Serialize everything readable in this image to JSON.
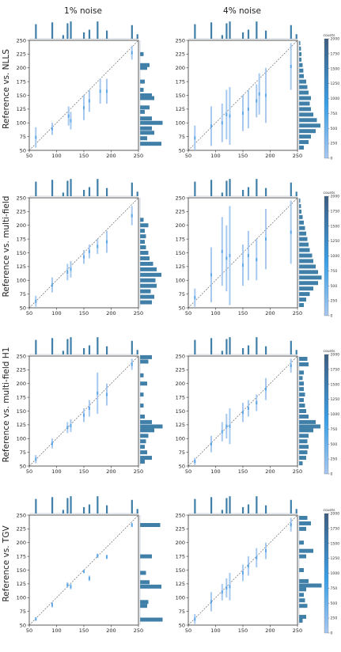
{
  "figure": {
    "column_titles": [
      "1% noise",
      "4% noise"
    ],
    "row_labels": [
      "Reference vs. NLLS",
      "Reference vs. multi-field",
      "Reference vs. multi-field H1",
      "Reference vs. TGV"
    ],
    "colorbar": {
      "title": "counts",
      "ticks": [
        0,
        250,
        500,
        750,
        1000,
        1250,
        1500,
        1750,
        2000
      ],
      "colors": [
        "#a8c8f0",
        "#3aa0e8",
        "#3e5e82"
      ]
    }
  },
  "chart_data": [
    {
      "type": "heatmap",
      "row": "Reference vs. NLLS",
      "column": "1% noise",
      "xlim": [
        50,
        250
      ],
      "ylim": [
        50,
        250
      ],
      "x_ticks": [
        50,
        100,
        150,
        200,
        250
      ],
      "y_ticks": [
        50,
        75,
        100,
        125,
        150,
        175,
        200,
        225,
        250
      ],
      "segments": [
        [
          62,
          55,
          92
        ],
        [
          92,
          78,
          100
        ],
        [
          122,
          95,
          130
        ],
        [
          126,
          88,
          120
        ],
        [
          150,
          105,
          150
        ],
        [
          160,
          120,
          160
        ],
        [
          180,
          135,
          180
        ],
        [
          192,
          135,
          180
        ],
        [
          238,
          215,
          240
        ]
      ],
      "y_marginal": [
        [
          62,
          0.9
        ],
        [
          72,
          0.3
        ],
        [
          82,
          0.6
        ],
        [
          90,
          0.5
        ],
        [
          100,
          0.95
        ],
        [
          108,
          0.5
        ],
        [
          120,
          0.2
        ],
        [
          128,
          0.4
        ],
        [
          145,
          0.6
        ],
        [
          150,
          0.5
        ],
        [
          160,
          0.15
        ],
        [
          175,
          0.2
        ],
        [
          200,
          0.3
        ],
        [
          205,
          0.4
        ],
        [
          225,
          0.15
        ]
      ]
    },
    {
      "type": "heatmap",
      "row": "Reference vs. NLLS",
      "column": "4% noise",
      "xlim": [
        50,
        250
      ],
      "ylim": [
        50,
        250
      ],
      "x_ticks": [
        50,
        100,
        150,
        200,
        250
      ],
      "y_ticks": [
        50,
        75,
        100,
        125,
        150,
        175,
        200,
        225,
        250
      ],
      "segments": [
        [
          62,
          50,
          95
        ],
        [
          92,
          58,
          130
        ],
        [
          112,
          65,
          135
        ],
        [
          120,
          70,
          160
        ],
        [
          126,
          60,
          165
        ],
        [
          150,
          85,
          150
        ],
        [
          160,
          90,
          160
        ],
        [
          175,
          110,
          170
        ],
        [
          180,
          115,
          190
        ],
        [
          192,
          100,
          200
        ],
        [
          238,
          160,
          245
        ]
      ],
      "y_marginal": [
        [
          55,
          0.2
        ],
        [
          65,
          0.4
        ],
        [
          75,
          0.5
        ],
        [
          85,
          0.7
        ],
        [
          95,
          0.9
        ],
        [
          105,
          0.75
        ],
        [
          115,
          0.6
        ],
        [
          125,
          0.5
        ],
        [
          135,
          0.45
        ],
        [
          145,
          0.5
        ],
        [
          155,
          0.4
        ],
        [
          165,
          0.35
        ],
        [
          175,
          0.3
        ],
        [
          185,
          0.2
        ],
        [
          195,
          0.18
        ],
        [
          205,
          0.15
        ],
        [
          215,
          0.1
        ],
        [
          225,
          0.1
        ],
        [
          235,
          0.08
        ],
        [
          245,
          0.05
        ]
      ]
    },
    {
      "type": "heatmap",
      "row": "Reference vs. multi-field",
      "column": "1% noise",
      "xlim": [
        50,
        250
      ],
      "ylim": [
        50,
        250
      ],
      "x_ticks": [
        50,
        100,
        150,
        200,
        250
      ],
      "y_ticks": [
        50,
        75,
        100,
        125,
        150,
        175,
        200,
        225,
        250
      ],
      "segments": [
        [
          62,
          52,
          72
        ],
        [
          92,
          78,
          105
        ],
        [
          120,
          100,
          130
        ],
        [
          126,
          105,
          135
        ],
        [
          150,
          130,
          155
        ],
        [
          160,
          140,
          165
        ],
        [
          175,
          148,
          175
        ],
        [
          192,
          150,
          190
        ],
        [
          238,
          200,
          235
        ]
      ],
      "y_marginal": [
        [
          60,
          0.5
        ],
        [
          70,
          0.6
        ],
        [
          80,
          0.45
        ],
        [
          90,
          0.7
        ],
        [
          100,
          0.65
        ],
        [
          110,
          0.9
        ],
        [
          120,
          0.7
        ],
        [
          130,
          0.55
        ],
        [
          140,
          0.4
        ],
        [
          150,
          0.35
        ],
        [
          160,
          0.25
        ],
        [
          170,
          0.2
        ],
        [
          180,
          0.25
        ],
        [
          190,
          0.2
        ],
        [
          200,
          0.35
        ],
        [
          210,
          0.15
        ]
      ]
    },
    {
      "type": "heatmap",
      "row": "Reference vs. multi-field",
      "column": "4% noise",
      "xlim": [
        50,
        250
      ],
      "ylim": [
        50,
        250
      ],
      "x_ticks": [
        50,
        100,
        150,
        200,
        250
      ],
      "y_ticks": [
        50,
        75,
        100,
        125,
        150,
        175,
        200,
        225,
        250
      ],
      "segments": [
        [
          62,
          52,
          85
        ],
        [
          92,
          60,
          160
        ],
        [
          112,
          90,
          215
        ],
        [
          120,
          80,
          200
        ],
        [
          126,
          55,
          235
        ],
        [
          150,
          90,
          165
        ],
        [
          160,
          100,
          190
        ],
        [
          175,
          100,
          175
        ],
        [
          192,
          120,
          230
        ],
        [
          238,
          130,
          245
        ]
      ],
      "y_marginal": [
        [
          55,
          0.2
        ],
        [
          65,
          0.3
        ],
        [
          75,
          0.45
        ],
        [
          85,
          0.6
        ],
        [
          95,
          0.8
        ],
        [
          105,
          0.95
        ],
        [
          115,
          0.8
        ],
        [
          125,
          0.7
        ],
        [
          135,
          0.6
        ],
        [
          145,
          0.55
        ],
        [
          155,
          0.45
        ],
        [
          165,
          0.4
        ],
        [
          175,
          0.35
        ],
        [
          185,
          0.3
        ],
        [
          195,
          0.25
        ],
        [
          205,
          0.2
        ],
        [
          215,
          0.15
        ],
        [
          225,
          0.1
        ],
        [
          235,
          0.08
        ],
        [
          245,
          0.05
        ]
      ]
    },
    {
      "type": "heatmap",
      "row": "Reference vs. multi-field H1",
      "column": "1% noise",
      "xlim": [
        50,
        250
      ],
      "ylim": [
        50,
        250
      ],
      "x_ticks": [
        50,
        100,
        150,
        200,
        250
      ],
      "y_ticks": [
        50,
        75,
        100,
        125,
        150,
        175,
        200,
        225,
        250
      ],
      "segments": [
        [
          62,
          55,
          70
        ],
        [
          92,
          82,
          100
        ],
        [
          120,
          110,
          130
        ],
        [
          126,
          112,
          135
        ],
        [
          150,
          130,
          155
        ],
        [
          160,
          140,
          170
        ],
        [
          175,
          145,
          220
        ],
        [
          192,
          160,
          200
        ],
        [
          238,
          225,
          245
        ]
      ],
      "y_marginal": [
        [
          58,
          0.2
        ],
        [
          65,
          0.5
        ],
        [
          75,
          0.3
        ],
        [
          85,
          0.2
        ],
        [
          95,
          0.25
        ],
        [
          105,
          0.35
        ],
        [
          115,
          0.6
        ],
        [
          122,
          0.95
        ],
        [
          130,
          0.5
        ],
        [
          140,
          0.2
        ],
        [
          160,
          0.15
        ],
        [
          180,
          0.15
        ],
        [
          200,
          0.3
        ],
        [
          215,
          0.15
        ],
        [
          240,
          0.35
        ],
        [
          248,
          0.5
        ]
      ]
    },
    {
      "type": "heatmap",
      "row": "Reference vs. multi-field H1",
      "column": "4% noise",
      "xlim": [
        50,
        250
      ],
      "ylim": [
        50,
        250
      ],
      "x_ticks": [
        50,
        100,
        150,
        200,
        250
      ],
      "y_ticks": [
        50,
        75,
        100,
        125,
        150,
        175,
        200,
        225,
        250
      ],
      "segments": [
        [
          62,
          52,
          65
        ],
        [
          92,
          75,
          105
        ],
        [
          112,
          95,
          130
        ],
        [
          120,
          100,
          145
        ],
        [
          126,
          90,
          155
        ],
        [
          150,
          130,
          165
        ],
        [
          160,
          140,
          170
        ],
        [
          175,
          150,
          180
        ],
        [
          192,
          170,
          210
        ],
        [
          238,
          220,
          245
        ]
      ],
      "y_marginal": [
        [
          55,
          0.15
        ],
        [
          65,
          0.3
        ],
        [
          75,
          0.35
        ],
        [
          85,
          0.4
        ],
        [
          95,
          0.35
        ],
        [
          105,
          0.4
        ],
        [
          115,
          0.6
        ],
        [
          122,
          0.9
        ],
        [
          130,
          0.7
        ],
        [
          140,
          0.4
        ],
        [
          150,
          0.3
        ],
        [
          160,
          0.25
        ],
        [
          170,
          0.2
        ],
        [
          180,
          0.25
        ],
        [
          190,
          0.2
        ],
        [
          200,
          0.2
        ],
        [
          210,
          0.15
        ],
        [
          220,
          0.2
        ],
        [
          235,
          0.4
        ],
        [
          245,
          0.35
        ]
      ]
    },
    {
      "type": "heatmap",
      "row": "Reference vs. TGV",
      "column": "1% noise",
      "xlim": [
        50,
        250
      ],
      "ylim": [
        50,
        250
      ],
      "x_ticks": [
        50,
        100,
        150,
        200,
        250
      ],
      "y_ticks": [
        50,
        75,
        100,
        125,
        150,
        175,
        200,
        225,
        250
      ],
      "segments": [
        [
          62,
          58,
          64
        ],
        [
          92,
          82,
          92
        ],
        [
          120,
          118,
          128
        ],
        [
          126,
          115,
          125
        ],
        [
          150,
          145,
          150
        ],
        [
          160,
          130,
          140
        ],
        [
          175,
          172,
          180
        ],
        [
          192,
          170,
          178
        ],
        [
          238,
          228,
          236
        ]
      ],
      "y_marginal": [
        [
          60,
          0.95
        ],
        [
          85,
          0.3
        ],
        [
          92,
          0.35
        ],
        [
          120,
          0.9
        ],
        [
          128,
          0.4
        ],
        [
          145,
          0.25
        ],
        [
          175,
          0.5
        ],
        [
          232,
          0.85
        ]
      ]
    },
    {
      "type": "heatmap",
      "row": "Reference vs. TGV",
      "column": "4% noise",
      "xlim": [
        50,
        250
      ],
      "ylim": [
        50,
        250
      ],
      "x_ticks": [
        50,
        100,
        150,
        200,
        250
      ],
      "y_ticks": [
        50,
        75,
        100,
        125,
        150,
        175,
        200,
        225,
        250
      ],
      "segments": [
        [
          62,
          52,
          70
        ],
        [
          92,
          75,
          110
        ],
        [
          112,
          95,
          125
        ],
        [
          120,
          100,
          135
        ],
        [
          126,
          95,
          145
        ],
        [
          150,
          130,
          160
        ],
        [
          160,
          140,
          175
        ],
        [
          175,
          155,
          190
        ],
        [
          192,
          170,
          200
        ],
        [
          238,
          220,
          245
        ]
      ],
      "y_marginal": [
        [
          58,
          0.15
        ],
        [
          65,
          0.3
        ],
        [
          85,
          0.35
        ],
        [
          95,
          0.25
        ],
        [
          105,
          0.2
        ],
        [
          115,
          0.3
        ],
        [
          122,
          0.95
        ],
        [
          130,
          0.4
        ],
        [
          150,
          0.2
        ],
        [
          175,
          0.3
        ],
        [
          185,
          0.6
        ],
        [
          200,
          0.2
        ],
        [
          225,
          0.3
        ],
        [
          235,
          0.5
        ],
        [
          245,
          0.35
        ]
      ]
    }
  ],
  "x_marginal": [
    [
      62,
      0.8
    ],
    [
      92,
      0.9
    ],
    [
      112,
      0.2
    ],
    [
      120,
      0.85
    ],
    [
      126,
      0.95
    ],
    [
      150,
      0.35
    ],
    [
      160,
      0.5
    ],
    [
      175,
      0.95
    ],
    [
      192,
      0.45
    ],
    [
      238,
      0.75
    ],
    [
      248,
      0.25
    ]
  ]
}
